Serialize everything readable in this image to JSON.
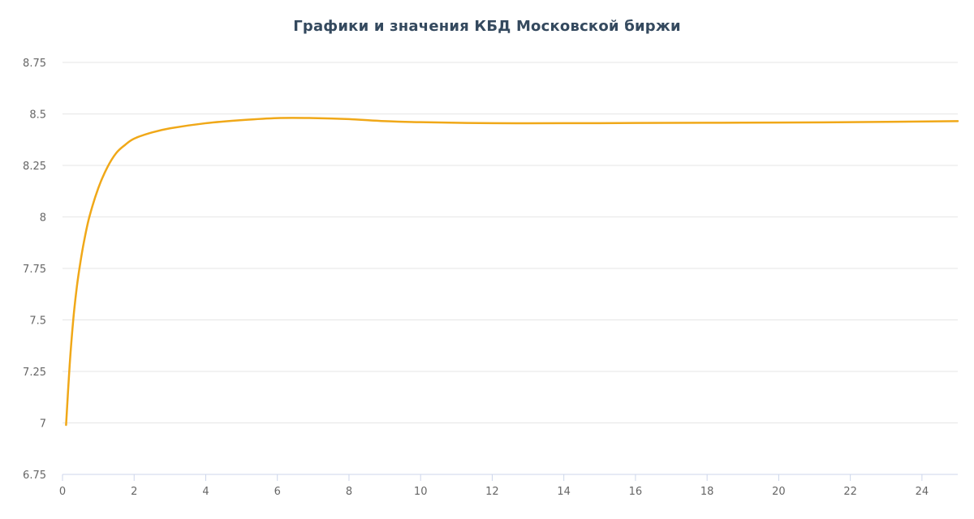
{
  "chart_data": {
    "type": "line",
    "title": "Графики и значения КБД Московской биржи",
    "xlabel": "",
    "ylabel": "",
    "xlim": [
      0,
      25
    ],
    "ylim": [
      6.75,
      8.75
    ],
    "x_ticks": [
      0,
      2,
      4,
      6,
      8,
      10,
      12,
      14,
      16,
      18,
      20,
      22,
      24
    ],
    "y_ticks": [
      6.75,
      7,
      7.25,
      7.5,
      7.75,
      8,
      8.25,
      8.5,
      8.75
    ],
    "y_tick_labels": [
      "6.75",
      "7",
      "7.25",
      "7.5",
      "7.75",
      "8",
      "8.25",
      "8.5",
      "8.75"
    ],
    "grid": true,
    "legend": "none",
    "series": [
      {
        "color": "#f0a818",
        "x": [
          0.1,
          0.2,
          0.3,
          0.4,
          0.5,
          0.6,
          0.75,
          1,
          1.25,
          1.5,
          1.75,
          2,
          2.5,
          3,
          4,
          5,
          6,
          7,
          8,
          9,
          10,
          12,
          14,
          16,
          18,
          20,
          22,
          25
        ],
        "y": [
          6.99,
          7.28,
          7.5,
          7.66,
          7.78,
          7.88,
          8.0,
          8.14,
          8.24,
          8.31,
          8.35,
          8.38,
          8.41,
          8.43,
          8.455,
          8.47,
          8.48,
          8.48,
          8.475,
          8.465,
          8.46,
          8.455,
          8.455,
          8.456,
          8.457,
          8.458,
          8.46,
          8.465
        ]
      }
    ]
  }
}
